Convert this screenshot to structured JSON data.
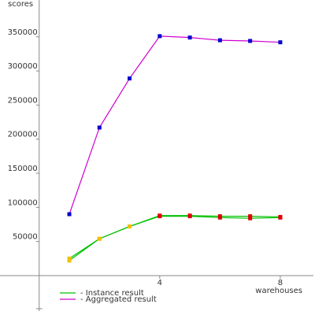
{
  "chart_data": {
    "type": "line",
    "ylabel": "scores",
    "xlabel": "warehouses",
    "x": [
      1,
      2,
      3,
      4,
      5,
      6,
      7,
      8
    ],
    "xlim": [
      -1.3,
      9.1
    ],
    "ylim": [
      -52000,
      404000
    ],
    "xticks": [
      4,
      8
    ],
    "yticks": [
      50000,
      100000,
      150000,
      200000,
      250000,
      300000,
      350000
    ],
    "axis_color": "#888888",
    "series": [
      {
        "name": "- Instance result",
        "color": "#00c000",
        "instances": [
          [
            22000,
            54000,
            72000,
            88000,
            88000,
            87000,
            87000,
            86000
          ],
          [
            25000,
            54000,
            72000,
            87000,
            87000,
            85000,
            84000,
            85000
          ]
        ],
        "marker_colors": [
          "#f0c000",
          "#f0c000",
          "#f0c000",
          "#e00000",
          "#e00000",
          "#e00000",
          "#e00000",
          "#e00000"
        ]
      },
      {
        "name": "- Aggregated result",
        "color": "#d000d0",
        "values": [
          90000,
          217000,
          289000,
          351000,
          349000,
          345000,
          344000,
          342000
        ],
        "marker_color": "#0000d0"
      }
    ]
  }
}
